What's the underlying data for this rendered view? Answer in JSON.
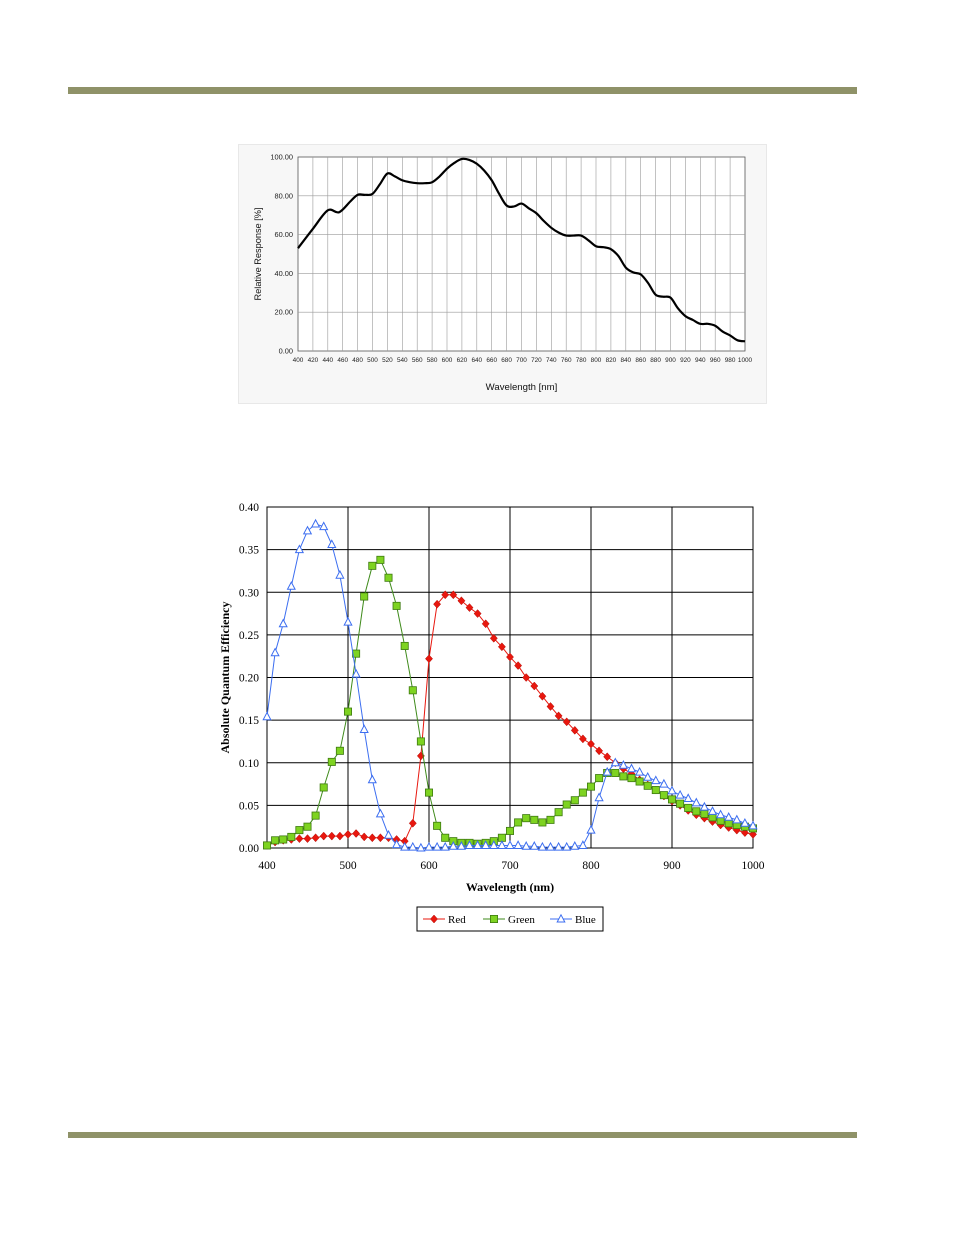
{
  "chart_data": [
    {
      "type": "line",
      "xlabel": "Wavelength [nm]",
      "ylabel": "Relative Response [%]",
      "xlim": [
        400,
        1000
      ],
      "ylim": [
        0,
        100
      ],
      "x_ticks": [
        "400",
        "420",
        "440",
        "460",
        "480",
        "500",
        "520",
        "540",
        "560",
        "580",
        "600",
        "620",
        "640",
        "660",
        "680",
        "700",
        "720",
        "740",
        "760",
        "780",
        "800",
        "820",
        "840",
        "860",
        "880",
        "900",
        "920",
        "940",
        "960",
        "980",
        "1000"
      ],
      "y_ticks": [
        "0.00",
        "20.00",
        "40.00",
        "60.00",
        "80.00",
        "100.00"
      ],
      "grid": true,
      "series": [
        {
          "color": "#000000",
          "x": [
            400,
            420,
            440,
            455,
            470,
            480,
            490,
            500,
            510,
            520,
            530,
            540,
            550,
            560,
            570,
            580,
            590,
            600,
            610,
            620,
            630,
            640,
            650,
            660,
            670,
            680,
            690,
            700,
            710,
            720,
            730,
            740,
            750,
            760,
            770,
            780,
            790,
            800,
            810,
            820,
            830,
            840,
            850,
            860,
            870,
            880,
            890,
            900,
            910,
            920,
            930,
            940,
            950,
            960,
            970,
            980,
            990,
            1000
          ],
          "y": [
            53,
            63,
            72.5,
            71.5,
            77,
            80.5,
            80.5,
            81,
            86,
            91.5,
            90,
            88,
            87,
            86.5,
            86.5,
            87,
            90,
            94,
            97,
            99,
            98.5,
            96.5,
            93,
            88,
            81,
            75,
            74.5,
            76,
            73.5,
            71,
            67,
            63.5,
            61,
            59.5,
            59.5,
            59.5,
            57,
            54,
            53.5,
            52.5,
            49,
            43,
            40.5,
            39.5,
            35,
            29,
            28,
            27.5,
            22,
            18,
            16,
            14,
            14,
            13,
            10,
            8,
            5.5,
            5
          ]
        }
      ]
    },
    {
      "type": "line",
      "xlabel": "Wavelength (nm)",
      "ylabel": "Absolute Quantum Efficiency",
      "xlim": [
        400,
        1000
      ],
      "ylim": [
        0,
        0.4
      ],
      "x_ticks": [
        "400",
        "500",
        "600",
        "700",
        "800",
        "900",
        "1000"
      ],
      "y_ticks": [
        "0.00",
        "0.05",
        "0.10",
        "0.15",
        "0.20",
        "0.25",
        "0.30",
        "0.35",
        "0.40"
      ],
      "grid": true,
      "legend_position": "bottom",
      "x": [
        400,
        410,
        420,
        430,
        440,
        450,
        460,
        470,
        480,
        490,
        500,
        510,
        520,
        530,
        540,
        550,
        560,
        570,
        580,
        590,
        600,
        610,
        620,
        630,
        640,
        650,
        660,
        670,
        680,
        690,
        700,
        710,
        720,
        730,
        740,
        750,
        760,
        770,
        780,
        790,
        800,
        810,
        820,
        830,
        840,
        850,
        860,
        870,
        880,
        890,
        900,
        910,
        920,
        930,
        940,
        950,
        960,
        970,
        980,
        990,
        1000
      ],
      "series": [
        {
          "name": "Red",
          "color": "#e8170e",
          "marker": "diamond",
          "values": [
            0.003,
            0.007,
            0.009,
            0.01,
            0.011,
            0.011,
            0.012,
            0.014,
            0.014,
            0.014,
            0.016,
            0.017,
            0.013,
            0.012,
            0.012,
            0.012,
            0.01,
            0.008,
            0.029,
            0.108,
            0.222,
            0.286,
            0.297,
            0.297,
            0.29,
            0.282,
            0.275,
            0.263,
            0.246,
            0.236,
            0.224,
            0.214,
            0.2,
            0.19,
            0.178,
            0.166,
            0.155,
            0.148,
            0.138,
            0.128,
            0.122,
            0.114,
            0.107,
            0.1,
            0.093,
            0.087,
            0.08,
            0.074,
            0.068,
            0.061,
            0.055,
            0.05,
            0.044,
            0.039,
            0.035,
            0.031,
            0.027,
            0.024,
            0.021,
            0.018,
            0.016
          ]
        },
        {
          "name": "Green",
          "color": "#7ed321",
          "marker": "square",
          "values": [
            0.003,
            0.009,
            0.01,
            0.013,
            0.021,
            0.025,
            0.038,
            0.071,
            0.101,
            0.114,
            0.16,
            0.228,
            0.295,
            0.331,
            0.338,
            0.317,
            0.284,
            0.237,
            0.185,
            0.125,
            0.065,
            0.026,
            0.012,
            0.008,
            0.006,
            0.006,
            0.005,
            0.006,
            0.008,
            0.012,
            0.02,
            0.03,
            0.035,
            0.033,
            0.03,
            0.033,
            0.042,
            0.051,
            0.056,
            0.065,
            0.072,
            0.082,
            0.088,
            0.088,
            0.084,
            0.082,
            0.078,
            0.073,
            0.068,
            0.062,
            0.057,
            0.052,
            0.047,
            0.043,
            0.04,
            0.036,
            0.032,
            0.029,
            0.027,
            0.025,
            0.023
          ]
        },
        {
          "name": "Blue",
          "color": "#3c6ef0",
          "marker": "triangle",
          "values": [
            0.154,
            0.229,
            0.263,
            0.307,
            0.35,
            0.372,
            0.38,
            0.377,
            0.356,
            0.32,
            0.265,
            0.204,
            0.139,
            0.08,
            0.04,
            0.015,
            0.004,
            0.001,
            0.001,
            0.0,
            0.001,
            0.001,
            0.001,
            0.002,
            0.002,
            0.003,
            0.003,
            0.003,
            0.003,
            0.003,
            0.003,
            0.003,
            0.002,
            0.002,
            0.001,
            0.001,
            0.001,
            0.001,
            0.002,
            0.003,
            0.021,
            0.059,
            0.089,
            0.1,
            0.097,
            0.093,
            0.089,
            0.083,
            0.079,
            0.075,
            0.067,
            0.062,
            0.058,
            0.053,
            0.048,
            0.043,
            0.039,
            0.036,
            0.033,
            0.029,
            0.026
          ]
        }
      ]
    }
  ]
}
